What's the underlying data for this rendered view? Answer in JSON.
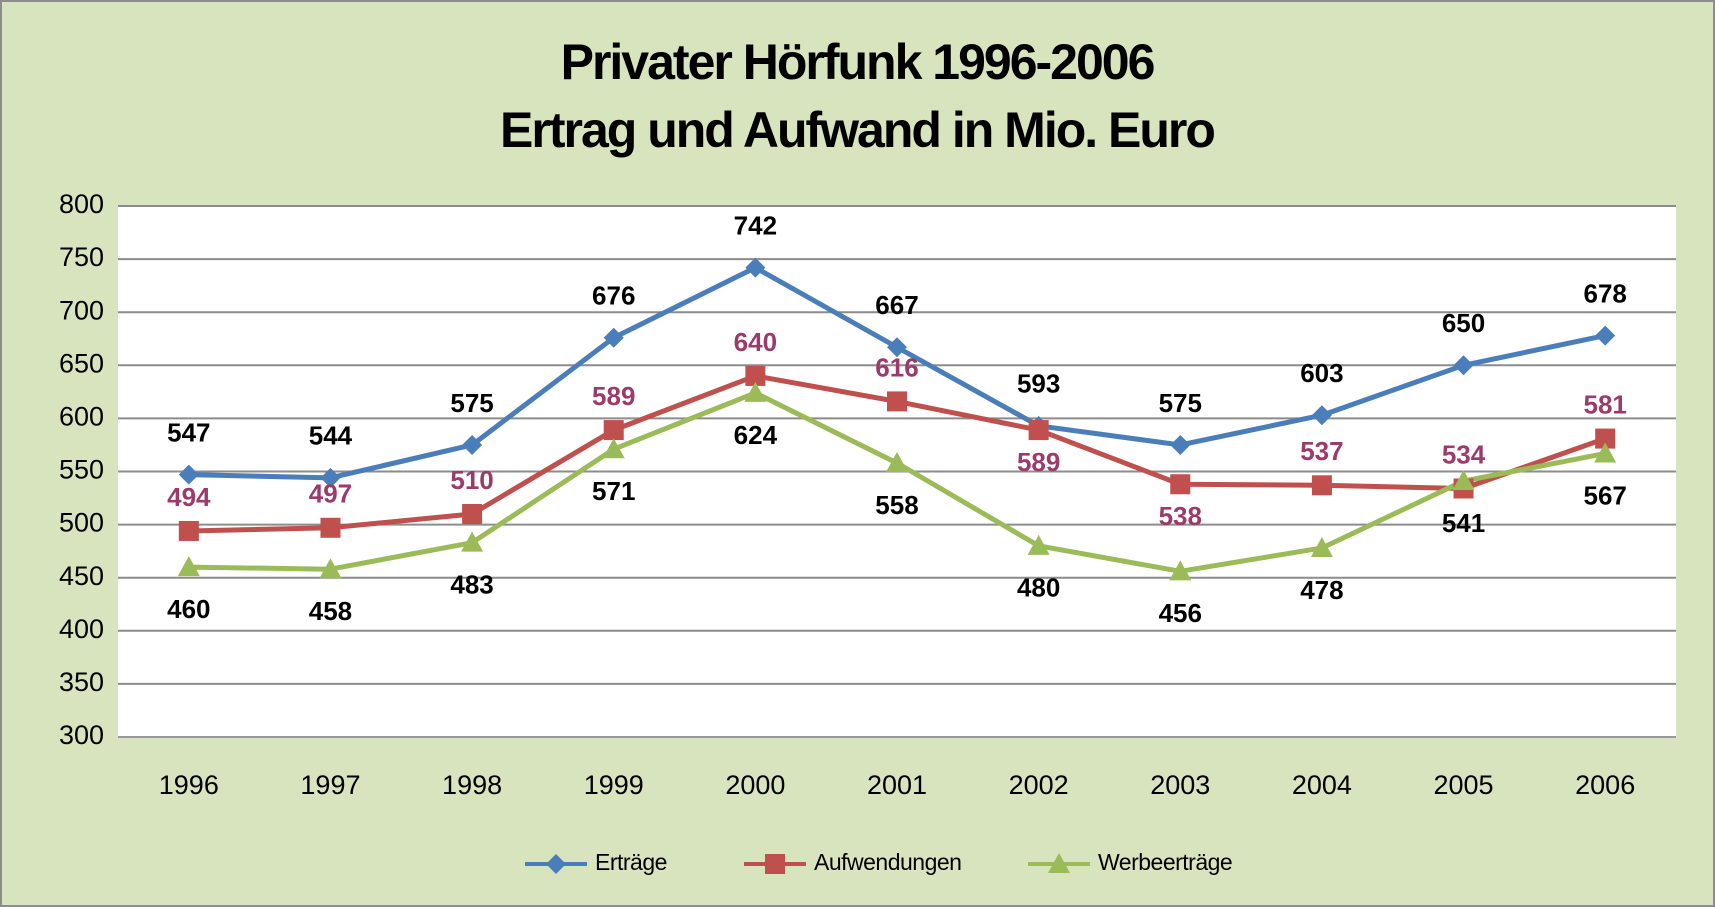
{
  "chart_data": {
    "type": "line",
    "title": "Privater Hörfunk 1996-2006",
    "subtitle": "Ertrag und Aufwand in Mio. Euro",
    "categories": [
      "1996",
      "1997",
      "1998",
      "1999",
      "2000",
      "2001",
      "2002",
      "2003",
      "2004",
      "2005",
      "2006"
    ],
    "series": [
      {
        "name": "Erträge",
        "color": "#4a7ebb",
        "marker": "diamond",
        "label_color": "#000000",
        "values": [
          547,
          544,
          575,
          676,
          742,
          667,
          593,
          575,
          603,
          650,
          678
        ]
      },
      {
        "name": "Aufwendungen",
        "color": "#c0504d",
        "marker": "square",
        "label_color": "#9b3a6b",
        "values": [
          494,
          497,
          510,
          589,
          640,
          616,
          589,
          538,
          537,
          534,
          581
        ]
      },
      {
        "name": "Werbeerträge",
        "color": "#9bbb59",
        "marker": "triangle",
        "label_color": "#000000",
        "values": [
          460,
          458,
          483,
          571,
          624,
          558,
          480,
          456,
          478,
          541,
          567
        ]
      }
    ],
    "ylim": [
      300,
      800
    ],
    "yticks": [
      300,
      350,
      400,
      450,
      500,
      550,
      600,
      650,
      700,
      750,
      800
    ],
    "grid": true,
    "legend": "bottom"
  }
}
